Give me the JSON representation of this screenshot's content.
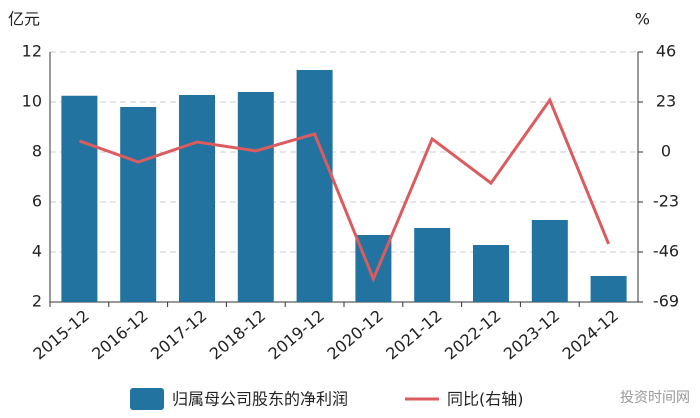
{
  "chart_data": {
    "type": "bar_line",
    "y_label": "亿元",
    "y2_label": "%",
    "categories": [
      "2015-12",
      "2016-12",
      "2017-12",
      "2018-12",
      "2019-12",
      "2020-12",
      "2021-12",
      "2022-12",
      "2023-12",
      "2024-12"
    ],
    "series": [
      {
        "name": "归属母公司股东的净利润",
        "type": "bar",
        "color": "#22739f",
        "values": [
          10.25,
          9.8,
          10.28,
          10.4,
          11.28,
          4.68,
          4.96,
          4.28,
          5.28,
          3.04
        ]
      },
      {
        "name": "同比(右轴)",
        "type": "line",
        "axis": "y2",
        "color": "#dc5b5f",
        "values": [
          5.1,
          -4.6,
          4.6,
          0.5,
          8.3,
          -58.4,
          6,
          -14.3,
          23.9,
          -42.3
        ]
      }
    ],
    "ylim": [
      2,
      12
    ],
    "yticks": [
      2,
      4,
      6,
      8,
      10,
      12
    ],
    "y2lim": [
      -69,
      46
    ],
    "y2ticks": [
      -69,
      -46,
      -23,
      0,
      23,
      46
    ],
    "grid": true,
    "watermark": "投资时间网"
  }
}
